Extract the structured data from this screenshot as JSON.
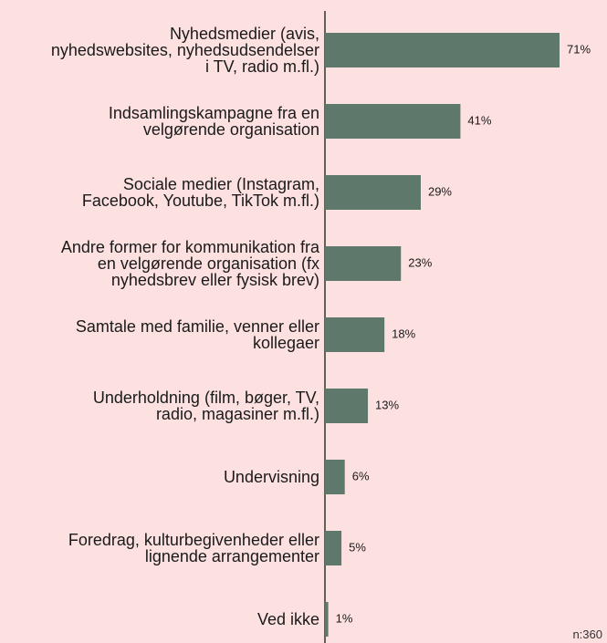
{
  "chart_data": {
    "type": "bar",
    "orientation": "horizontal",
    "categories": [
      "Nyhedsmedier (avis,\nnyhedswebsites, nyhedsudsendelser\ni TV, radio m.fl.)",
      "Indsamlingskampagne fra en\nvelgørende organisation",
      "Sociale medier (Instagram,\nFacebook, Youtube, TikTok m.fl.)",
      "Andre former for kommunikation fra\nen velgørende organisation (fx\nnyhedsbrev eller fysisk brev)",
      "Samtale med familie, venner eller\nkollegaer",
      "Underholdning (film, bøger, TV,\nradio, magasiner m.fl.)",
      "Undervisning",
      "Foredrag, kulturbegivenheder eller\nlignende arrangementer",
      "Ved ikke"
    ],
    "values": [
      71,
      41,
      29,
      23,
      18,
      13,
      6,
      5,
      1
    ],
    "value_labels": [
      "71%",
      "41%",
      "29%",
      "23%",
      "18%",
      "13%",
      "6%",
      "5%",
      "1%"
    ],
    "color": "#5e786c",
    "xlim": [
      0,
      100
    ],
    "note": "n:360"
  }
}
